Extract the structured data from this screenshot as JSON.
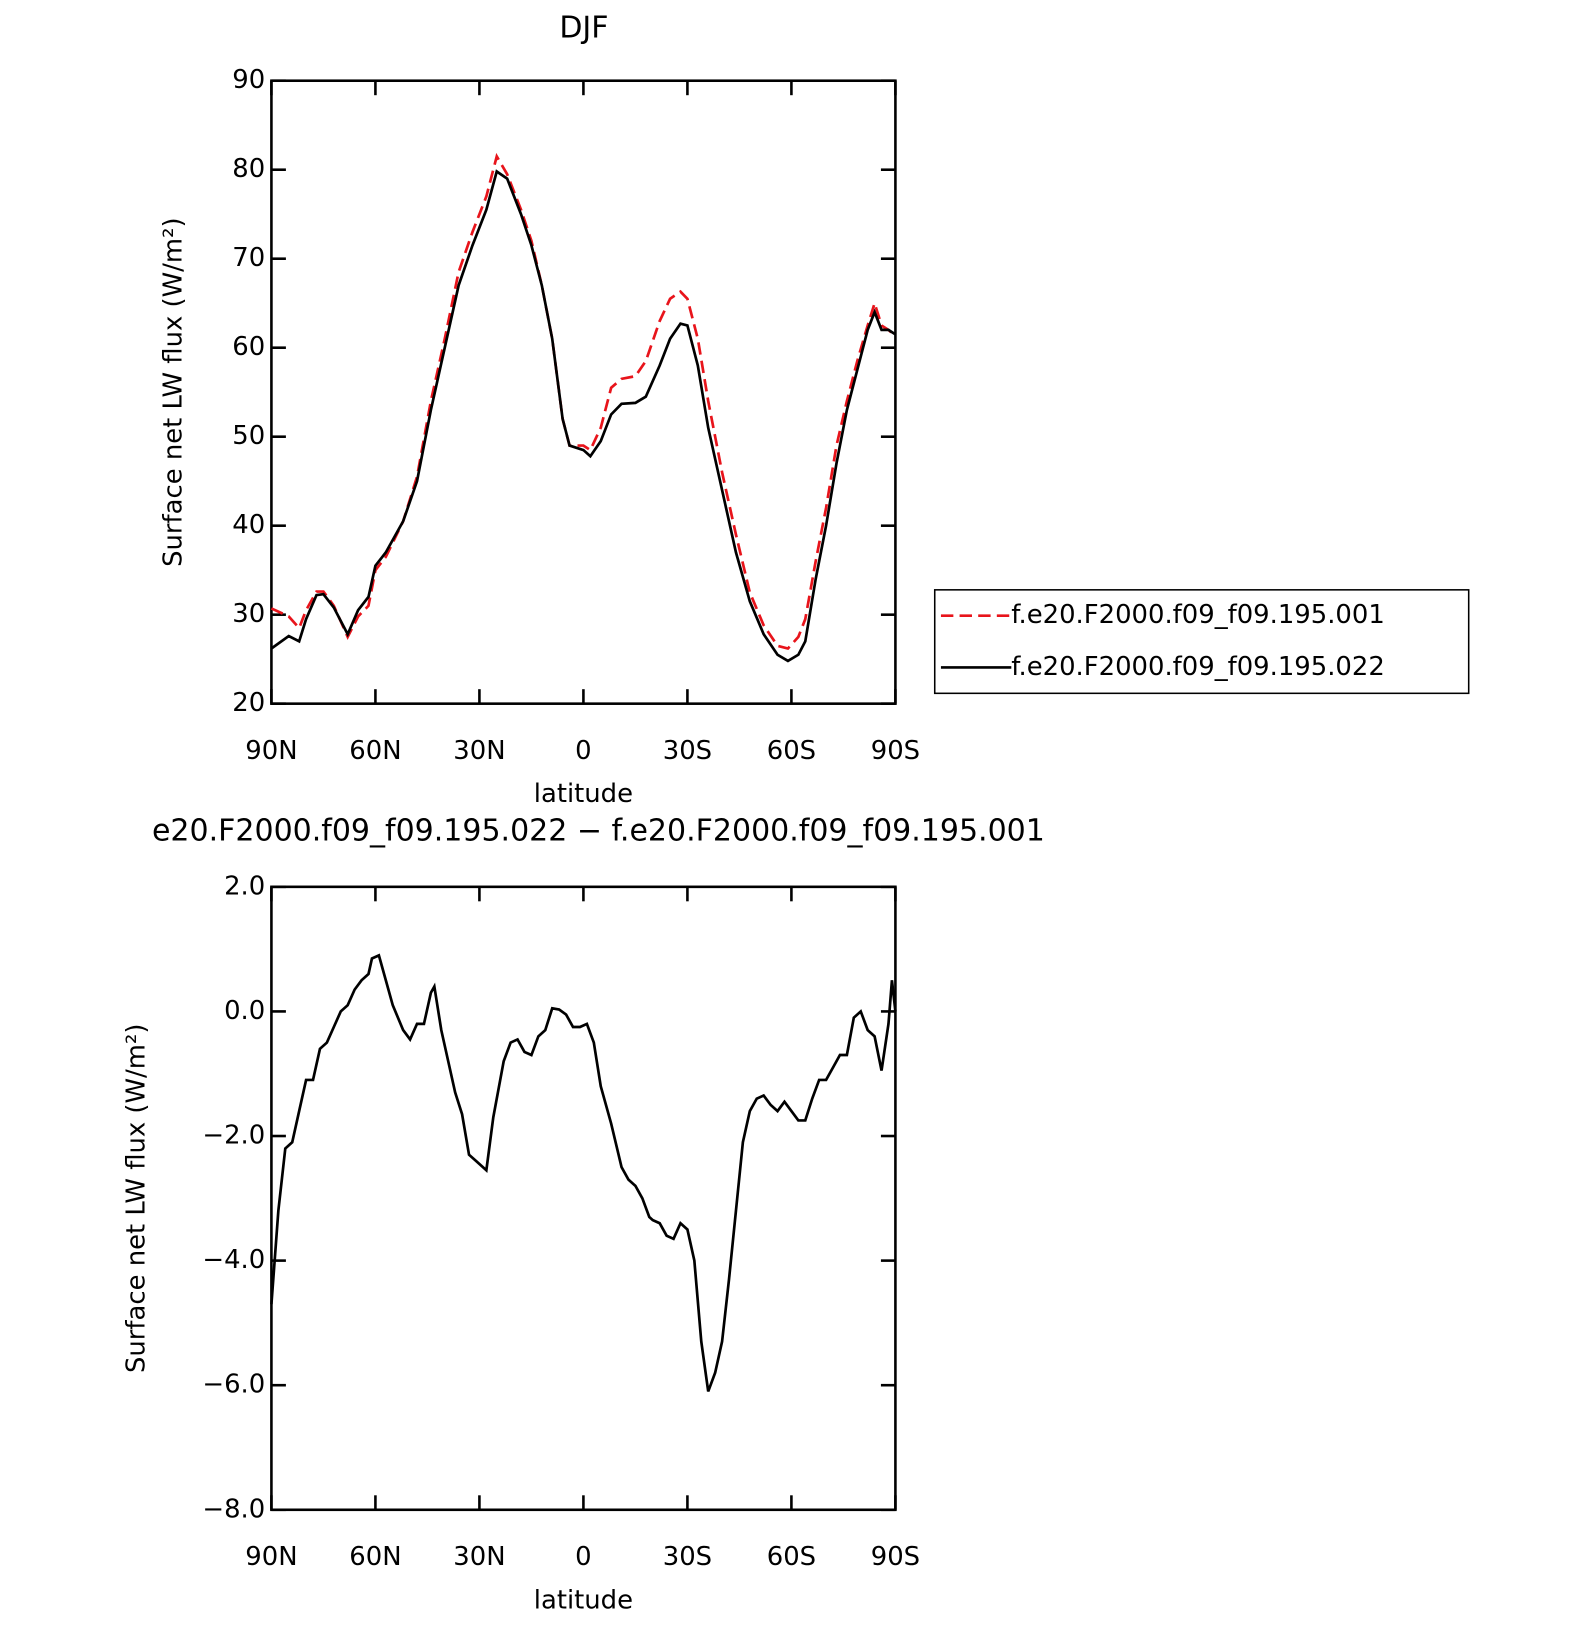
{
  "chart_data": [
    {
      "type": "line",
      "title": "DJF",
      "x_label": "latitude",
      "y_label": "Surface net LW flux (W/m²)",
      "x": [
        90,
        85,
        82,
        80,
        77,
        75,
        72,
        68,
        65,
        62,
        60,
        57,
        52,
        48,
        44,
        40,
        36,
        32,
        28,
        25,
        22,
        18,
        15,
        12,
        9,
        6,
        4,
        0,
        -2,
        -5,
        -8,
        -11,
        -15,
        -18,
        -22,
        -25,
        -28,
        -30,
        -33,
        -36,
        -40,
        -44,
        -48,
        -52,
        -56,
        -59,
        -62,
        -64,
        -67,
        -70,
        -73,
        -76,
        -79,
        -82,
        -84,
        -86,
        -88,
        -90
      ],
      "series": [
        {
          "name": "f.e20.F2000.f09_f09.195.001",
          "color": "#e8141b",
          "line_style": "dashed",
          "values": [
            30.7,
            29.8,
            28.5,
            30.5,
            32.6,
            32.6,
            31,
            27.5,
            29.8,
            31,
            35,
            36.5,
            40.5,
            45.5,
            54,
            61,
            68.5,
            73,
            77,
            81.5,
            79.5,
            75.5,
            72,
            67,
            61,
            52,
            49,
            49,
            48.5,
            51,
            55.5,
            56.5,
            56.8,
            58.5,
            63,
            65.5,
            66.3,
            65.5,
            61,
            54,
            46,
            39,
            32.5,
            28.8,
            26.5,
            26.2,
            27.5,
            29.5,
            36,
            42,
            49,
            54,
            58.5,
            62.5,
            65,
            62.5,
            62,
            61.3
          ]
        },
        {
          "name": "f.e20.F2000.f09_f09.195.022",
          "color": "#000000",
          "line_style": "solid",
          "values": [
            26.2,
            27.6,
            27.0,
            29.5,
            32.2,
            32.3,
            30.8,
            27.8,
            30.5,
            32,
            35.5,
            37,
            40.5,
            45,
            53,
            60,
            67,
            71.5,
            75.5,
            79.8,
            79,
            75,
            71.5,
            67,
            61,
            52,
            49,
            48.5,
            47.8,
            49.5,
            52.5,
            53.7,
            53.8,
            54.5,
            58,
            61,
            62.7,
            62.5,
            58,
            51,
            44,
            37,
            31.5,
            27.8,
            25.5,
            24.8,
            25.5,
            27,
            34,
            40,
            47,
            53,
            57.5,
            62,
            64,
            62,
            62,
            61.5
          ]
        }
      ],
      "xlim": [
        90,
        -90
      ],
      "xticks": [
        {
          "value": 90,
          "label": "90N"
        },
        {
          "value": 60,
          "label": "60N"
        },
        {
          "value": 30,
          "label": "30N"
        },
        0,
        {
          "value": -30,
          "label": "30S"
        },
        {
          "value": -60,
          "label": "60S"
        },
        {
          "value": -90,
          "label": "90S"
        }
      ],
      "ylim": [
        20,
        90
      ],
      "yticks": [
        20,
        30,
        40,
        50,
        60,
        70,
        80,
        90
      ],
      "legend": "right"
    },
    {
      "type": "line",
      "title": "e20.F2000.f09_f09.195.022 − f.e20.F2000.f09_f09.195.001",
      "x_label": "latitude",
      "y_label": "Surface net LW flux (W/m²)",
      "x": [
        90,
        88,
        86,
        84,
        82,
        80,
        78,
        76,
        74,
        72,
        70,
        68,
        66,
        64,
        62,
        61,
        59,
        57,
        55,
        52,
        50,
        48,
        46,
        44,
        43,
        41,
        39,
        37,
        35,
        33,
        31,
        29,
        28,
        26,
        23,
        21,
        19,
        17,
        15,
        13,
        11,
        9,
        7,
        5,
        3,
        1,
        -1,
        -3,
        -5,
        -8,
        -11,
        -13,
        -15,
        -17,
        -19,
        -20,
        -22,
        -24,
        -26,
        -28,
        -30,
        -32,
        -34,
        -36,
        -38,
        -40,
        -42,
        -44,
        -46,
        -48,
        -50,
        -52,
        -54,
        -56,
        -58,
        -60,
        -62,
        -64,
        -66,
        -68,
        -70,
        -72,
        -74,
        -76,
        -78,
        -80,
        -82,
        -84,
        -86,
        -88,
        -89,
        -90
      ],
      "series": [
        {
          "color": "#000000",
          "line_style": "solid",
          "values": [
            -4.7,
            -3.2,
            -2.2,
            -2.1,
            -1.6,
            -1.1,
            -1.1,
            -0.6,
            -0.5,
            -0.25,
            0.0,
            0.1,
            0.35,
            0.5,
            0.6,
            0.85,
            0.9,
            0.5,
            0.1,
            -0.3,
            -0.45,
            -0.2,
            -0.2,
            0.3,
            0.4,
            -0.3,
            -0.8,
            -1.3,
            -1.65,
            -2.3,
            -2.4,
            -2.5,
            -2.55,
            -1.7,
            -0.8,
            -0.5,
            -0.45,
            -0.65,
            -0.7,
            -0.4,
            -0.3,
            0.05,
            0.03,
            -0.05,
            -0.25,
            -0.25,
            -0.2,
            -0.5,
            -1.2,
            -1.8,
            -2.5,
            -2.7,
            -2.8,
            -3.0,
            -3.3,
            -3.35,
            -3.4,
            -3.6,
            -3.65,
            -3.4,
            -3.5,
            -4.0,
            -5.3,
            -6.1,
            -5.8,
            -5.3,
            -4.3,
            -3.2,
            -2.1,
            -1.6,
            -1.4,
            -1.35,
            -1.5,
            -1.6,
            -1.45,
            -1.6,
            -1.75,
            -1.75,
            -1.4,
            -1.1,
            -1.1,
            -0.9,
            -0.7,
            -0.7,
            -0.1,
            0.0,
            -0.3,
            -0.4,
            -0.95,
            -0.2,
            0.5,
            0.0
          ]
        }
      ],
      "xlim": [
        90,
        -90
      ],
      "xticks": [
        {
          "value": 90,
          "label": "90N"
        },
        {
          "value": 60,
          "label": "60N"
        },
        {
          "value": 30,
          "label": "30N"
        },
        0,
        {
          "value": -30,
          "label": "30S"
        },
        {
          "value": -60,
          "label": "60S"
        },
        {
          "value": -90,
          "label": "90S"
        }
      ],
      "ylim": [
        -8,
        2
      ],
      "yticks": [
        {
          "value": -8,
          "label": "−8.0"
        },
        {
          "value": -6,
          "label": "−6.0"
        },
        {
          "value": -4,
          "label": "−4.0"
        },
        {
          "value": -2,
          "label": "−2.0"
        },
        {
          "value": 0,
          "label": "0.0"
        },
        {
          "value": 2,
          "label": "2.0"
        }
      ]
    }
  ]
}
